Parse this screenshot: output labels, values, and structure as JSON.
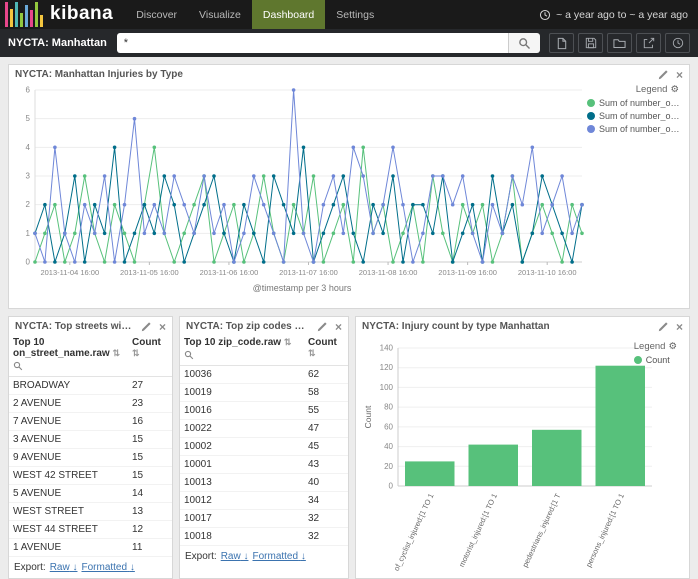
{
  "navbar": {
    "logo": "kibana",
    "items": [
      {
        "label": "Discover",
        "active": false
      },
      {
        "label": "Visualize",
        "active": false
      },
      {
        "label": "Dashboard",
        "active": true
      },
      {
        "label": "Settings",
        "active": false
      }
    ],
    "timepicker": "~ a year ago to ~ a year ago"
  },
  "searchbar": {
    "title": "NYCTA: Manhattan",
    "query": "*",
    "icons": [
      "new-file",
      "save",
      "open-folder",
      "share",
      "clock"
    ]
  },
  "icons": {
    "gear": "⚙",
    "close": "×",
    "sort": "⇅",
    "download": "↓"
  },
  "colors": {
    "nav_active": "#5f772e",
    "link": "#3b73af",
    "series_green": "#57c17b",
    "series_teal": "#006e8a",
    "series_blue": "#6f87d8"
  },
  "export": {
    "label": "Export:",
    "raw": "Raw",
    "formatted": "Formatted"
  },
  "panels": {
    "injuries": {
      "title": "NYCTA: Manhattan Injuries by Type",
      "legend_title": "Legend"
    },
    "streets": {
      "title": "NYCTA: Top streets with incidents...",
      "col1": "Top 10 on_street_name.raw",
      "col2": "Count",
      "rows": [
        [
          "BROADWAY",
          27
        ],
        [
          "2 AVENUE",
          23
        ],
        [
          "7 AVENUE",
          16
        ],
        [
          "3 AVENUE",
          15
        ],
        [
          "9 AVENUE",
          15
        ],
        [
          "WEST 42 STREET",
          15
        ],
        [
          "5 AVENUE",
          14
        ],
        [
          "WEST STREET",
          13
        ],
        [
          "WEST 44 STREET",
          12
        ],
        [
          "1 AVENUE",
          11
        ]
      ]
    },
    "zips": {
      "title": "NYCTA: Top zip codes Manhattan",
      "col1": "Top 10 zip_code.raw",
      "col2": "Count",
      "rows": [
        [
          "10036",
          62
        ],
        [
          "10019",
          58
        ],
        [
          "10016",
          55
        ],
        [
          "10022",
          47
        ],
        [
          "10002",
          45
        ],
        [
          "10001",
          43
        ],
        [
          "10013",
          40
        ],
        [
          "10012",
          34
        ],
        [
          "10017",
          32
        ],
        [
          "10018",
          32
        ]
      ]
    },
    "bars": {
      "title": "NYCTA: Injury count by type Manhattan",
      "legend_title": "Legend"
    }
  },
  "chart_data": [
    {
      "type": "line",
      "title": "NYCTA: Manhattan Injuries by Type",
      "xlabel": "@timestamp per 3 hours",
      "x_ticks": [
        "2013-11-04 16:00",
        "2013-11-05 16:00",
        "2013-11-06 16:00",
        "2013-11-07 16:00",
        "2013-11-08 16:00",
        "2013-11-09 16:00",
        "2013-11-10 16:00"
      ],
      "ylim": [
        0,
        6
      ],
      "y_ticks": [
        0,
        1,
        2,
        3,
        4,
        5,
        6
      ],
      "legend_position": "right",
      "grid": true,
      "series": [
        {
          "name": "Sum of number_of_cy...",
          "color": "#57c17b",
          "values": [
            0,
            1,
            2,
            0,
            1,
            3,
            1,
            0,
            2,
            1,
            0,
            2,
            4,
            1,
            0,
            1,
            2,
            3,
            0,
            1,
            2,
            0,
            1,
            3,
            1,
            0,
            2,
            1,
            3,
            0,
            1,
            2,
            0,
            4,
            1,
            2,
            0,
            1,
            2,
            0,
            3,
            1,
            0,
            2,
            1,
            2,
            0,
            1,
            3,
            0,
            1,
            2,
            1,
            0,
            2,
            1
          ]
        },
        {
          "name": "Sum of number_of_mo...",
          "color": "#006e8a",
          "values": [
            1,
            2,
            0,
            1,
            3,
            0,
            2,
            1,
            4,
            0,
            1,
            2,
            1,
            3,
            2,
            0,
            1,
            2,
            3,
            1,
            0,
            2,
            1,
            0,
            3,
            2,
            1,
            4,
            0,
            1,
            2,
            3,
            1,
            0,
            2,
            1,
            3,
            0,
            2,
            2,
            1,
            3,
            0,
            1,
            2,
            0,
            3,
            1,
            2,
            0,
            1,
            3,
            2,
            1,
            0,
            2
          ]
        },
        {
          "name": "Sum of number_of_pe...",
          "color": "#6f87d8",
          "values": [
            1,
            0,
            4,
            1,
            0,
            2,
            1,
            3,
            0,
            2,
            5,
            1,
            2,
            1,
            3,
            2,
            1,
            3,
            1,
            2,
            0,
            1,
            3,
            2,
            1,
            0,
            6,
            1,
            0,
            2,
            3,
            1,
            4,
            3,
            1,
            2,
            4,
            2,
            0,
            1,
            3,
            3,
            2,
            3,
            1,
            0,
            2,
            1,
            3,
            2,
            4,
            1,
            2,
            3,
            1,
            2
          ]
        }
      ]
    },
    {
      "type": "bar",
      "title": "NYCTA: Injury count by type Manhattan",
      "ylabel": "Count",
      "ylim": [
        0,
        140
      ],
      "y_ticks": [
        0,
        20,
        40,
        60,
        80,
        100,
        120,
        140
      ],
      "categories": [
        "of_cyclist_injured:[1 TO 1",
        "motorist_injured:[1 TO 1",
        "pedestrians_injured:[1 T",
        "persons_injured:[1 TO 1"
      ],
      "values": [
        25,
        42,
        57,
        122
      ],
      "color": "#57c17b",
      "legend": [
        "Count"
      ],
      "legend_position": "right"
    }
  ]
}
